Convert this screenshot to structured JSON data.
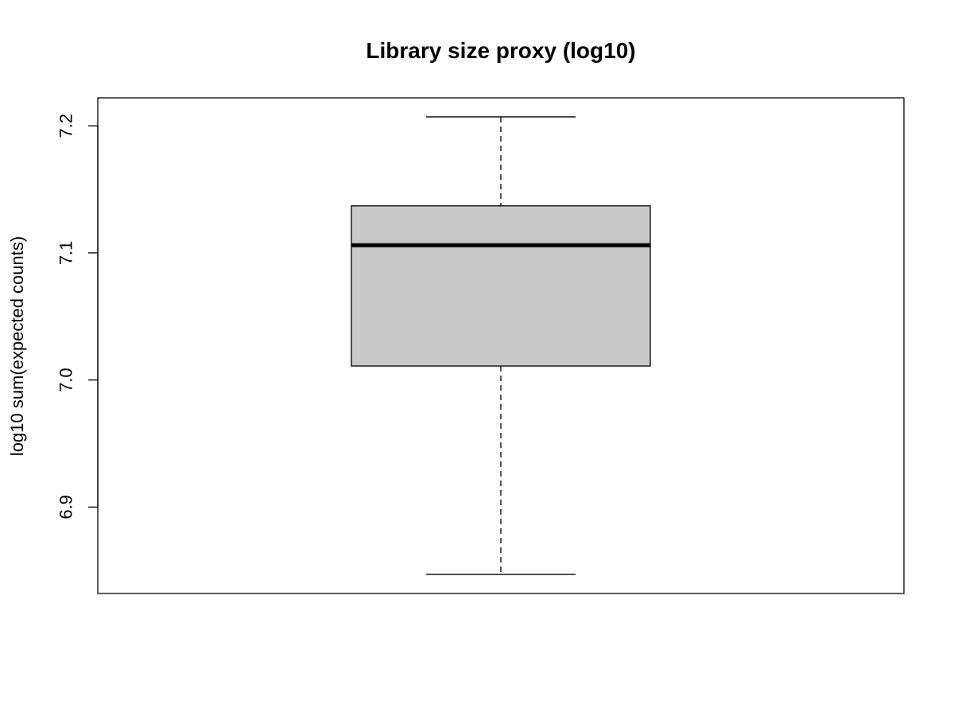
{
  "chart_data": {
    "type": "boxplot",
    "title": "Library size proxy (log10)",
    "xlabel": "",
    "ylabel": "log10 sum(expected counts)",
    "ylim": [
      6.832,
      7.222
    ],
    "yticks": [
      6.9,
      7.0,
      7.1,
      7.2
    ],
    "ytick_labels": [
      "6.9",
      "7.0",
      "7.1",
      "7.2"
    ],
    "box": {
      "min": 6.847,
      "q1": 7.011,
      "median": 7.106,
      "q3": 7.137,
      "max": 7.207
    },
    "box_fill": "#c8c8c8",
    "line_color": "#000000",
    "grid": false,
    "legend": "none"
  }
}
